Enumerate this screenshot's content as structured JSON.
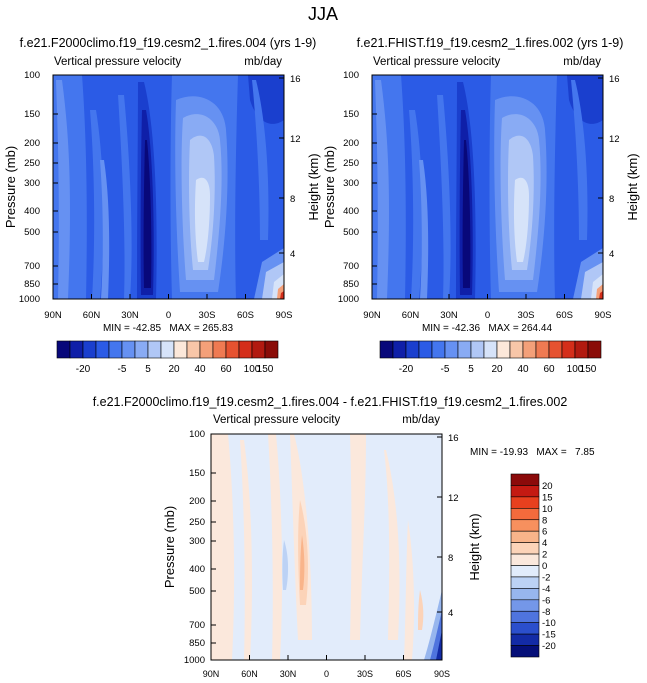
{
  "figure_title": "JJA",
  "chart_data": [
    {
      "type": "contour",
      "id": "p1",
      "title": "f.e21.F2000climo.f19_f19.cesm2_1.fires.004 (yrs 1-9)",
      "subtitle_left": "Vertical pressure velocity",
      "subtitle_right": "mb/day",
      "ylabel": "Pressure (mb)",
      "y2label": "Height (km)",
      "xticks": [
        "90N",
        "60N",
        "30N",
        "0",
        "30S",
        "60S",
        "90S"
      ],
      "yticks": [
        "100",
        "150",
        "200",
        "250",
        "300",
        "400",
        "500",
        "700",
        "850",
        "1000"
      ],
      "y2ticks": [
        "16",
        "12",
        "8",
        "4"
      ],
      "ylim": [
        100,
        1000
      ],
      "stats": "MIN = -42.85   MAX = 265.83",
      "min": -42.85,
      "max": 265.83
    },
    {
      "type": "contour",
      "id": "p2",
      "title": "f.e21.FHIST.f19_f19.cesm2_1.fires.002 (yrs 1-9)",
      "subtitle_left": "Vertical pressure velocity",
      "subtitle_right": "mb/day",
      "ylabel": "Pressure (mb)",
      "y2label": "Height (km)",
      "xticks": [
        "90N",
        "60N",
        "30N",
        "0",
        "30S",
        "60S",
        "90S"
      ],
      "yticks": [
        "100",
        "150",
        "200",
        "250",
        "300",
        "400",
        "500",
        "700",
        "850",
        "1000"
      ],
      "y2ticks": [
        "16",
        "12",
        "8",
        "4"
      ],
      "ylim": [
        100,
        1000
      ],
      "stats": "MIN = -42.36   MAX = 264.44",
      "min": -42.36,
      "max": 264.44
    },
    {
      "type": "contour",
      "id": "p3",
      "title": "f.e21.F2000climo.f19_f19.cesm2_1.fires.004 - f.e21.FHIST.f19_f19.cesm2_1.fires.002",
      "subtitle_left": "Vertical pressure velocity",
      "subtitle_right": "mb/day",
      "ylabel": "Pressure (mb)",
      "y2label": "Height (km)",
      "xticks": [
        "90N",
        "60N",
        "30N",
        "0",
        "30S",
        "60S",
        "90S"
      ],
      "yticks": [
        "100",
        "150",
        "200",
        "250",
        "300",
        "400",
        "500",
        "700",
        "850",
        "1000"
      ],
      "y2ticks": [
        "16",
        "12",
        "8",
        "4"
      ],
      "ylim": [
        100,
        1000
      ],
      "stats": "MIN = -19.93   MAX =   7.85",
      "min": -19.93,
      "max": 7.85
    }
  ],
  "colorbar_main": {
    "labels": [
      "-20",
      "-5",
      "5",
      "20",
      "40",
      "60",
      "100",
      "150"
    ],
    "colors": [
      "#08087a",
      "#0f1fa8",
      "#1a3fce",
      "#2b5be6",
      "#4476ee",
      "#6691f2",
      "#89abf4",
      "#b0c7f6",
      "#d6e3f9",
      "#fce8da",
      "#f8c6a8",
      "#f4a079",
      "#ef7a52",
      "#e65230",
      "#d42e1a",
      "#b21a10",
      "#8a0c08"
    ]
  },
  "colorbar_diff": {
    "labels": [
      "20",
      "15",
      "10",
      "8",
      "6",
      "4",
      "2",
      "0",
      "-2",
      "-4",
      "-6",
      "-8",
      "-10",
      "-15",
      "-20"
    ],
    "colors": [
      "#8b0a0a",
      "#c41a12",
      "#e8401e",
      "#f46a3c",
      "#f7905e",
      "#f9b48a",
      "#fcd3b8",
      "#fbe8dc",
      "#e2ecfb",
      "#bcd2f5",
      "#97b6ee",
      "#7497e8",
      "#4f74de",
      "#2b4fcc",
      "#132ba6",
      "#050f78"
    ]
  }
}
